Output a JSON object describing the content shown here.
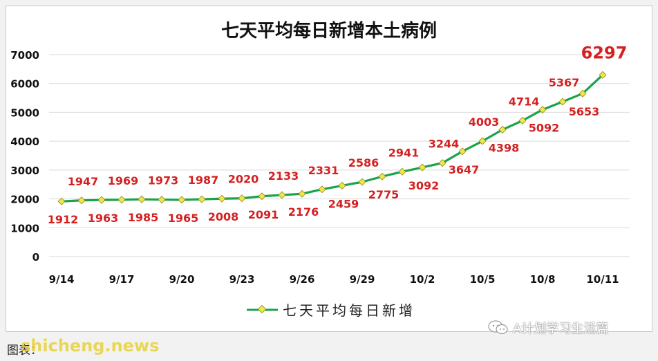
{
  "chart_data": {
    "type": "line",
    "title": "七天平均每日新增本土病例",
    "legend": {
      "label": "七天平均每日新增",
      "position": "bottom"
    },
    "x": [
      "9/14",
      "9/15",
      "9/16",
      "9/17",
      "9/18",
      "9/19",
      "9/20",
      "9/21",
      "9/22",
      "9/23",
      "9/24",
      "9/25",
      "9/26",
      "9/27",
      "9/28",
      "9/29",
      "9/30",
      "10/1",
      "10/2",
      "10/3",
      "10/4",
      "10/5",
      "10/6",
      "10/7",
      "10/8",
      "10/9",
      "10/10",
      "10/11"
    ],
    "x_tick_labels": [
      "9/14",
      "9/17",
      "9/20",
      "9/23",
      "9/26",
      "9/29",
      "10/2",
      "10/5",
      "10/8",
      "10/11"
    ],
    "series": [
      {
        "name": "七天平均每日新增",
        "values": [
          1912,
          1947,
          1963,
          1969,
          1985,
          1973,
          1965,
          1987,
          2008,
          2020,
          2091,
          2133,
          2176,
          2331,
          2459,
          2586,
          2775,
          2941,
          3092,
          3244,
          3647,
          4003,
          4398,
          4714,
          5092,
          5367,
          5653,
          6297
        ],
        "color": "#1aa34a",
        "marker_color": "#f0e64b"
      }
    ],
    "ylim": [
      0,
      7000
    ],
    "y_ticks": [
      0,
      1000,
      2000,
      3000,
      4000,
      5000,
      6000,
      7000
    ],
    "grid": true,
    "label_color": "#d42020"
  },
  "footer": {
    "source": "图表：",
    "watermark": "shicheng.news",
    "wechat_account": "A计划学习生活篇"
  },
  "icons": {
    "wechat": "wechat-icon"
  }
}
